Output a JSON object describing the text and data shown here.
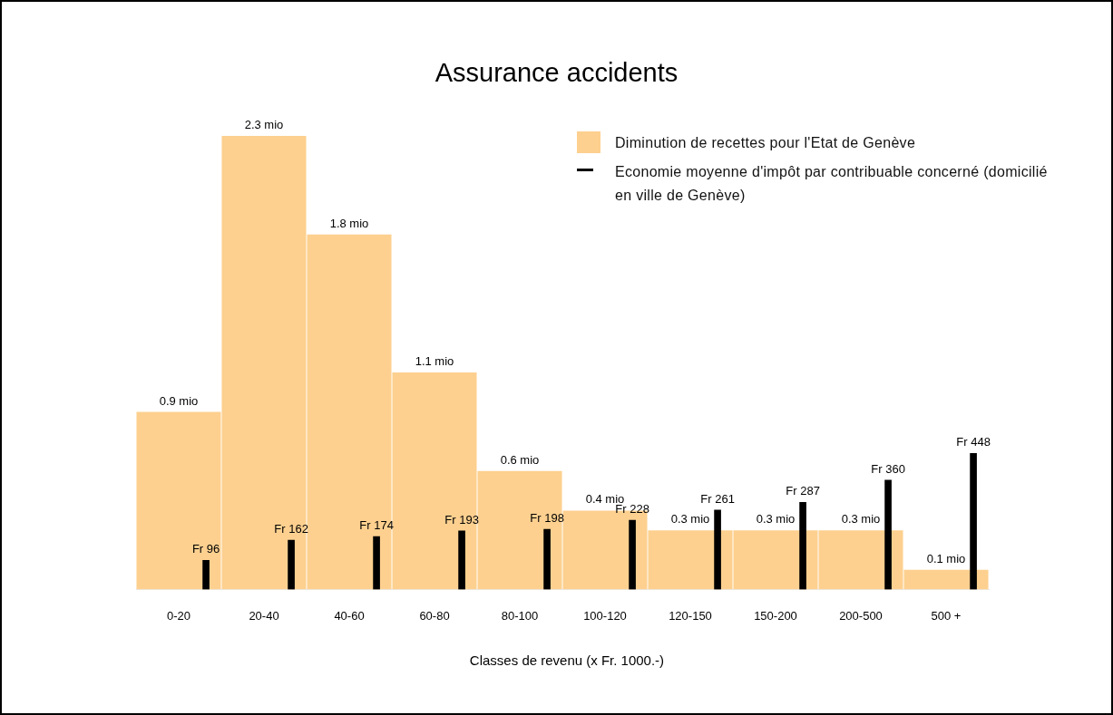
{
  "chart_data": {
    "type": "bar",
    "title": "Assurance accidents",
    "xlabel": "Classes de revenu (x Fr. 1000.-)",
    "categories": [
      "0-20",
      "20-40",
      "40-60",
      "60-80",
      "80-100",
      "100-120",
      "120-150",
      "150-200",
      "200-500",
      "500 +"
    ],
    "series": [
      {
        "name": "Diminution de recettes pour l'Etat de Genève",
        "color": "#fdd08f",
        "values": [
          0.9,
          2.3,
          1.8,
          1.1,
          0.6,
          0.4,
          0.3,
          0.3,
          0.3,
          0.1
        ],
        "value_labels": [
          "0.9 mio",
          "2.3 mio",
          "1.8 mio",
          "1.1 mio",
          "0.6 mio",
          "0.4 mio",
          "0.3 mio",
          "0.3 mio",
          "0.3 mio",
          "0.1 mio"
        ]
      },
      {
        "name": "Economie moyenne d'impôt par contribuable concerné (domicilié en ville de Genève)",
        "axis": "y2",
        "color": "#000000",
        "values": [
          96,
          162,
          174,
          193,
          198,
          228,
          261,
          287,
          360,
          448
        ],
        "value_labels": [
          "Fr 96",
          "Fr 162",
          "Fr 174",
          "Fr 193",
          "Fr 198",
          "Fr 228",
          "Fr 261",
          "Fr 287",
          "Fr 360",
          "Fr 448"
        ]
      }
    ],
    "legend": "top right",
    "grid": false,
    "tick_labels": "x"
  }
}
